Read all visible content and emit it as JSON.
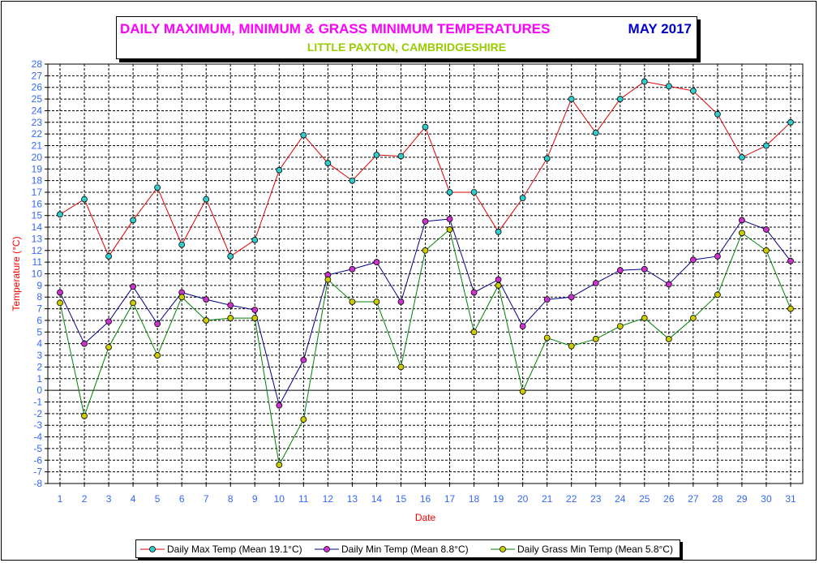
{
  "chart_data": {
    "type": "line",
    "title": "DAILY MAXIMUM, MINIMUM & GRASS MINIMUM TEMPERATURES",
    "title_month": "MAY 2017",
    "subtitle": "LITTLE PAXTON, CAMBRIDGESHIRE",
    "xlabel": "Date",
    "ylabel": "Temperature (°C)",
    "ylim": [
      -8,
      28
    ],
    "xlim": [
      1,
      31
    ],
    "x": [
      1,
      2,
      3,
      4,
      5,
      6,
      7,
      8,
      9,
      10,
      11,
      12,
      13,
      14,
      15,
      16,
      17,
      18,
      19,
      20,
      21,
      22,
      23,
      24,
      25,
      26,
      27,
      28,
      29,
      30,
      31
    ],
    "grid": true,
    "legend_position": "bottom",
    "series": [
      {
        "name": "Daily Max Temp (Mean 19.1°C)",
        "line_color": "#e00000",
        "marker_color": "#33cccc",
        "values": [
          15.1,
          16.4,
          11.5,
          14.6,
          17.4,
          12.5,
          16.4,
          11.5,
          12.9,
          18.9,
          21.9,
          19.5,
          18.0,
          20.2,
          20.1,
          22.6,
          17.0,
          17.0,
          13.6,
          16.5,
          19.9,
          25.0,
          22.1,
          25.0,
          26.5,
          26.1,
          25.7,
          23.7,
          20.0,
          21.0,
          23.0
        ]
      },
      {
        "name": "Daily Min Temp (Mean 8.8°C)",
        "line_color": "#00008b",
        "marker_color": "#cc33cc",
        "values": [
          8.4,
          4.0,
          5.9,
          8.9,
          5.7,
          8.4,
          7.8,
          7.3,
          6.9,
          -1.3,
          2.6,
          9.9,
          10.4,
          11.0,
          7.6,
          14.5,
          14.7,
          8.4,
          9.5,
          5.5,
          7.8,
          8.0,
          9.2,
          10.3,
          10.4,
          9.1,
          11.2,
          11.5,
          14.6,
          13.8,
          11.1
        ]
      },
      {
        "name": "Daily Grass Min Temp (Mean 5.8°C)",
        "line_color": "#008000",
        "marker_color": "#cccc00",
        "values": [
          7.5,
          -2.2,
          3.7,
          7.5,
          3.0,
          8.0,
          6.0,
          6.2,
          6.2,
          -6.4,
          -2.5,
          9.5,
          7.6,
          7.6,
          2.0,
          12.0,
          13.8,
          5.0,
          9.0,
          -0.1,
          4.5,
          3.8,
          4.4,
          5.5,
          6.2,
          4.4,
          6.2,
          8.2,
          13.5,
          12.0,
          7.0
        ]
      }
    ]
  },
  "colors": {
    "title": "#ff00ff",
    "title_month": "#0000cc",
    "subtitle": "#99cc00",
    "axis_label": "#ff0000",
    "tick_label": "#3366ff"
  }
}
